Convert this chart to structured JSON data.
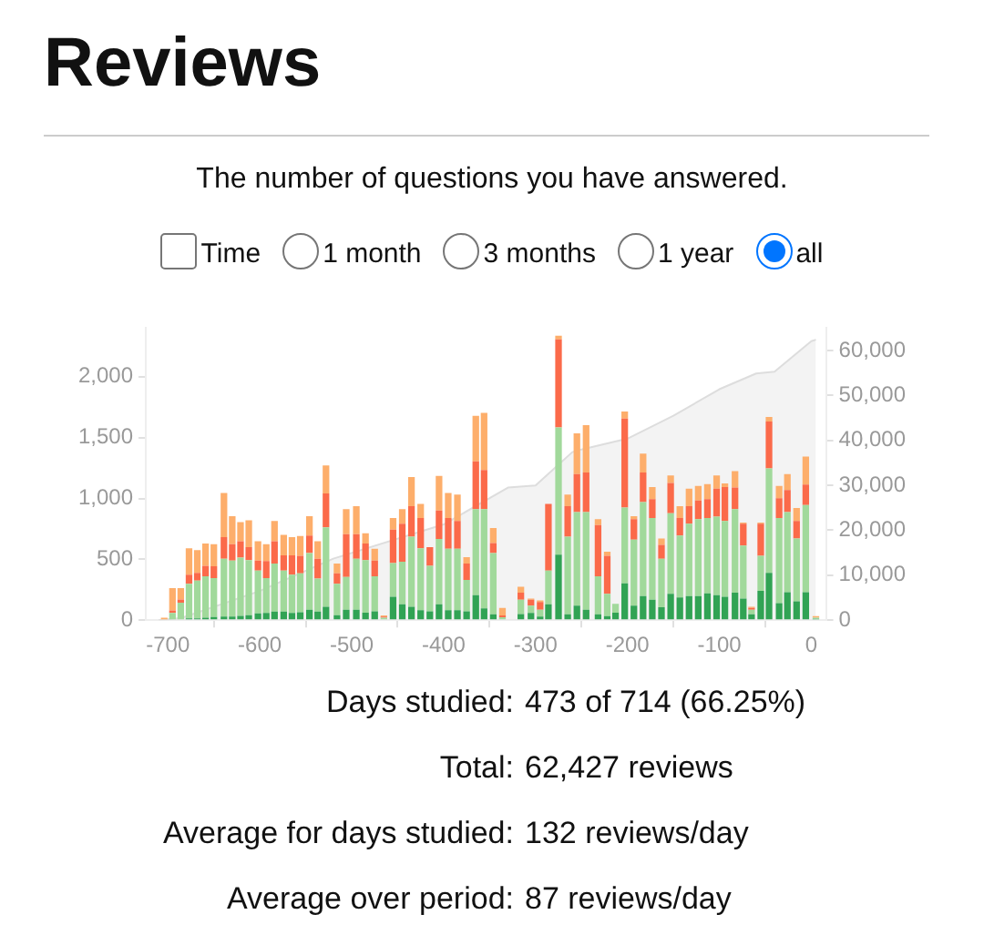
{
  "chart_data": {
    "type": "bar",
    "title": "Reviews",
    "subtitle": "The number of questions you have answered.",
    "annotations": [
      "Time",
      "1 month",
      "3 months",
      "1 year",
      "all",
      "Days studied: 473 of 714 (66.25%)",
      "Total: 62,427 reviews",
      "Average for days studied: 132 reviews/day",
      "Average over period: 87 reviews/day"
    ],
    "x": [
      -704,
      -695,
      -686,
      -677,
      -668,
      -659,
      -650,
      -639,
      -630,
      -621,
      -612,
      -602,
      -593,
      -584,
      -574,
      -565,
      -556,
      -546,
      -537,
      -528,
      -516,
      -506,
      -495,
      -485,
      -475,
      -465,
      -455,
      -445,
      -435,
      -425,
      -415,
      -405,
      -395,
      -385,
      -375,
      -365,
      -356,
      -346,
      -336,
      -316,
      -305,
      -295,
      -286,
      -275,
      -265,
      -255,
      -245,
      -232,
      -222,
      -213,
      -203,
      -193,
      -183,
      -173,
      -163,
      -153,
      -143,
      -133,
      -123,
      -113,
      -103,
      -94,
      -83,
      -74,
      -65,
      -55,
      -46,
      -35,
      -26,
      -16,
      -6,
      5
    ],
    "stacked": true,
    "series": [
      {
        "color": "#31a354",
        "values": [
          0,
          null,
          null,
          15,
          15,
          20,
          25,
          30,
          30,
          35,
          40,
          55,
          60,
          70,
          70,
          60,
          65,
          85,
          70,
          110,
          40,
          86,
          86,
          62,
          72,
          null,
          192,
          130,
          110,
          82,
          72,
          130,
          82,
          82,
          72,
          206,
          96,
          48,
          null,
          50,
          60,
          30,
          130,
          538,
          48,
          120,
          86,
          48,
          34,
          62,
          302,
          120,
          197,
          168,
          106,
          216,
          187,
          197,
          197,
          221,
          206,
          192,
          226,
          178,
          48,
          240,
          389,
          139,
          230,
          154,
          230,
          10
        ]
      },
      {
        "color": "#a1d99b",
        "values": [
          0,
          60,
          144,
          283,
          311,
          340,
          321,
          474,
          460,
          479,
          454,
          353,
          286,
          396,
          338,
          314,
          319,
          467,
          271,
          653,
          258,
          269,
          418,
          432,
          288,
          20,
          278,
          350,
          576,
          508,
          374,
          537,
          504,
          504,
          259,
          706,
          816,
          504,
          24,
          118,
          60,
          56,
          278,
          1046,
          638,
          768,
          802,
          312,
          182,
          72,
          624,
          542,
          773,
          672,
          398,
          662,
          509,
          595,
          633,
          619,
          644,
          624,
          686,
          436,
          38,
          288,
          859,
          701,
          658,
          518,
          716,
          10
        ]
      },
      {
        "color": "#fb6a4a",
        "values": [
          0,
          20,
          25,
          76,
          63,
          86,
          96,
          178,
          134,
          134,
          106,
          82,
          139,
          182,
          125,
          159,
          144,
          144,
          163,
          279,
          86,
          351,
          202,
          135,
          130,
          10,
          274,
          312,
          250,
          250,
          154,
          235,
          254,
          230,
          135,
          394,
          322,
          82,
          14,
          58,
          48,
          63,
          547,
          724,
          250,
          312,
          326,
          422,
          312,
          0,
          730,
          168,
          244,
          154,
          115,
          250,
          144,
          144,
          154,
          154,
          230,
          278,
          178,
          178,
          14,
          264,
          384,
          163,
          182,
          144,
          168,
          0
        ]
      },
      {
        "color": "#fdae6b",
        "values": [
          20,
          184,
          95,
          216,
          187,
          183,
          182,
          364,
          230,
          158,
          221,
          158,
          139,
          168,
          168,
          149,
          163,
          158,
          144,
          230,
          82,
          206,
          230,
          86,
          96,
          8,
          96,
          120,
          240,
          115,
          0,
          284,
          206,
          216,
          52,
          374,
          470,
          124,
          62,
          48,
          10,
          14,
          0,
          30,
          96,
          336,
          389,
          48,
          34,
          0,
          58,
          24,
          154,
          100,
          53,
          62,
          96,
          144,
          120,
          124,
          110,
          29,
          134,
          10,
          10,
          10,
          38,
          101,
          130,
          106,
          230,
          14
        ]
      },
      {
        "type": "area",
        "axis": "y2",
        "color": "#dddddd",
        "x": [
          -710,
          -685,
          -600,
          -520,
          -400,
          -330,
          -300,
          -260,
          -250,
          -200,
          -150,
          -100,
          -60,
          -40,
          0,
          5
        ],
        "values": [
          0,
          500,
          6500,
          13700,
          21300,
          29500,
          30000,
          37400,
          38000,
          40400,
          45500,
          51400,
          54900,
          55300,
          62100,
          62427
        ]
      }
    ],
    "xlim": [
      -724,
      16
    ],
    "xticks": [
      -700,
      -600,
      -500,
      -400,
      -300,
      -200,
      -100,
      0
    ],
    "ylim": [
      0,
      2400
    ],
    "yticks": [
      0,
      500,
      {
        "value": 1000,
        "label": "1,000"
      },
      {
        "value": 1500,
        "label": "1,500"
      },
      {
        "value": 2000,
        "label": "2,000"
      }
    ],
    "y2lim": [
      0,
      65000
    ],
    "y2ticks": [
      0,
      {
        "value": 10000,
        "label": "10,000"
      },
      {
        "value": 20000,
        "label": "20,000"
      },
      {
        "value": 30000,
        "label": "30,000"
      },
      {
        "value": 40000,
        "label": "40,000"
      },
      {
        "value": 50000,
        "label": "50,000"
      },
      {
        "value": 60000,
        "label": "60,000"
      }
    ],
    "grid": false,
    "legend": false,
    "marker": "none"
  }
}
